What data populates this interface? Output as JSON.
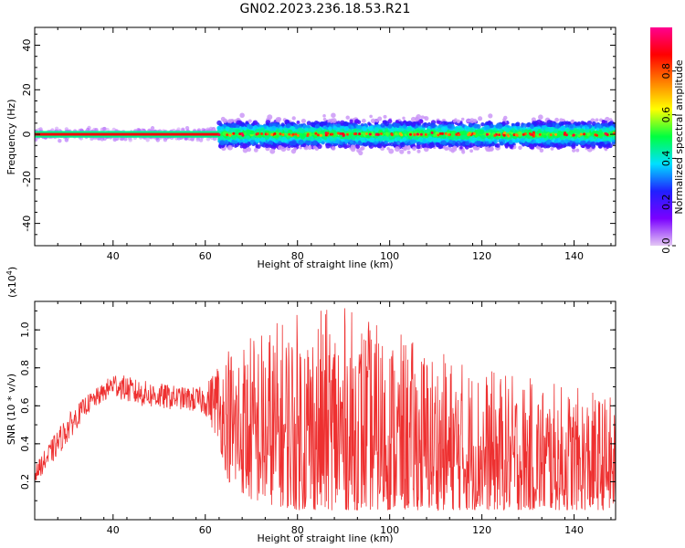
{
  "figure": {
    "title": "GN02.2023.236.18.53.R21"
  },
  "chart_data": [
    {
      "type": "heatmap",
      "xlabel": "Height of straight line (km)",
      "ylabel": "Frequency (Hz)",
      "xlim": [
        23,
        149
      ],
      "ylim": [
        -50,
        48
      ],
      "xticks": [
        40,
        60,
        80,
        100,
        120,
        140
      ],
      "yticks": [
        -40,
        -20,
        0,
        20,
        40
      ],
      "band": [
        {
          "x_range": [
            23,
            63
          ],
          "freq_center": 0,
          "freq_halfwidth": 1.5,
          "normalized_amplitude": 1.0
        },
        {
          "x_range": [
            63,
            149
          ],
          "freq_center": 0,
          "freq_halfwidth": 8,
          "normalized_amplitude": 0.5
        }
      ],
      "grid": false,
      "colorbar": {
        "label": "Normalized spectral amplitude",
        "range": [
          0,
          1
        ],
        "ticks": [
          "0.0",
          "0.2",
          "0.4",
          "0.6",
          "0.8"
        ],
        "colors": [
          "#e4c8f4",
          "#7a00ff",
          "#2020ff",
          "#00e0ff",
          "#00ff40",
          "#ffff00",
          "#ff8000",
          "#ff0000",
          "#ff0090"
        ]
      }
    },
    {
      "type": "line",
      "xlabel": "Height of straight line (km)",
      "ylabel": "SNR (10 * v/v)",
      "scale_note": "(x10",
      "scale_exp": "4",
      "scale_close": ")",
      "xlim": [
        23,
        149
      ],
      "ylim": [
        0,
        1.15
      ],
      "xticks": [
        40,
        60,
        80,
        100,
        120,
        140
      ],
      "yticks": [
        0.2,
        0.4,
        0.6,
        0.8,
        1.0
      ],
      "grid": false,
      "series": [
        {
          "color": "#ee3030",
          "envelope_x": [
            23,
            26,
            30,
            34,
            38,
            40,
            45,
            50,
            55,
            60,
            63,
            65,
            70,
            80,
            90,
            100,
            110,
            120,
            130,
            140,
            149
          ],
          "envelope_lower": [
            0.2,
            0.27,
            0.4,
            0.55,
            0.62,
            0.65,
            0.6,
            0.58,
            0.58,
            0.55,
            0.4,
            0.2,
            0.1,
            0.05,
            0.05,
            0.05,
            0.05,
            0.05,
            0.05,
            0.05,
            0.05
          ],
          "envelope_upper": [
            0.28,
            0.4,
            0.55,
            0.65,
            0.72,
            0.78,
            0.74,
            0.72,
            0.7,
            0.7,
            0.85,
            0.95,
            1.0,
            1.1,
            1.13,
            1.0,
            0.9,
            0.8,
            0.75,
            0.7,
            0.65
          ]
        }
      ]
    }
  ]
}
